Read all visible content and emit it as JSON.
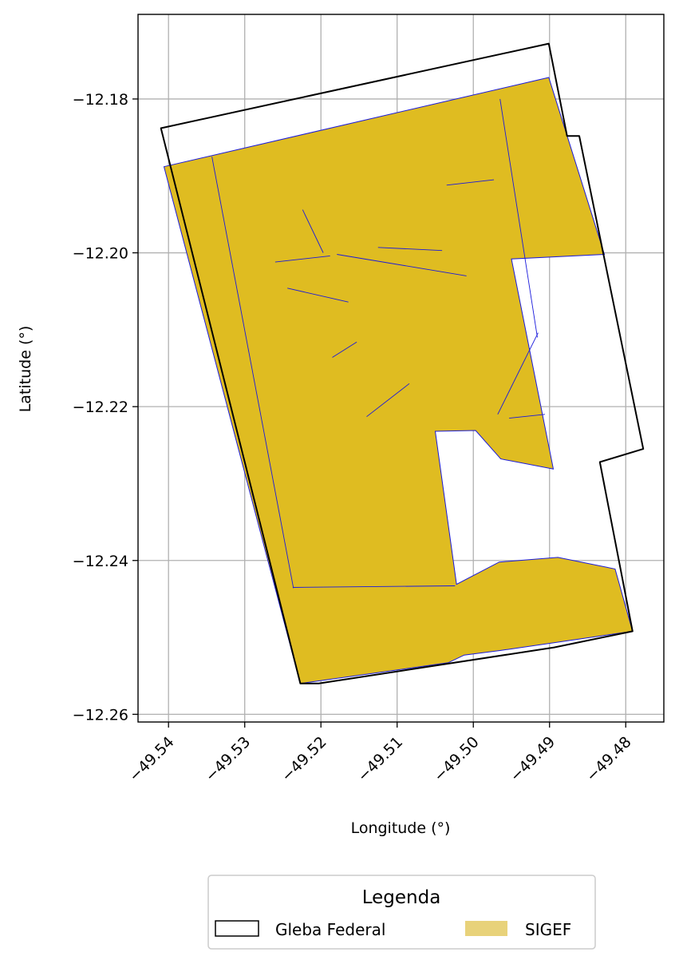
{
  "chart_data": {
    "type": "map",
    "xlabel": "Longitude (°)",
    "ylabel": "Latitude (°)",
    "xlim": [
      -49.544,
      -49.475
    ],
    "ylim": [
      -12.261,
      -12.169
    ],
    "grid": true,
    "x_ticks": [
      {
        "value": -49.54,
        "label": "−49.54"
      },
      {
        "value": -49.53,
        "label": "−49.53"
      },
      {
        "value": -49.52,
        "label": "−49.52"
      },
      {
        "value": -49.51,
        "label": "−49.51"
      },
      {
        "value": -49.5,
        "label": "−49.50"
      },
      {
        "value": -49.49,
        "label": "−49.49"
      },
      {
        "value": -49.48,
        "label": "−49.48"
      }
    ],
    "y_ticks": [
      {
        "value": -12.18,
        "label": "−12.18"
      },
      {
        "value": -12.2,
        "label": "−12.20"
      },
      {
        "value": -12.22,
        "label": "−12.22"
      },
      {
        "value": -12.24,
        "label": "−12.24"
      },
      {
        "value": -12.26,
        "label": "−12.26"
      }
    ],
    "legend": {
      "title": "Legenda",
      "placement": "bottom-center",
      "entries": [
        {
          "label": "Gleba Federal",
          "style": "outline"
        },
        {
          "label": "SIGEF",
          "style": "fill"
        }
      ]
    },
    "colors": {
      "sigef_fill": "#dfbc21",
      "sigef_legend": "#e8d27a",
      "sigef_edge": "#1a1adc",
      "gleba_edge": "#000000",
      "grid": "#b0b0b0"
    },
    "gleba_federal": [
      [
        -49.541,
        -12.1838
      ],
      [
        -49.4901,
        -12.1728
      ],
      [
        -49.4877,
        -12.1848
      ],
      [
        -49.4861,
        -12.1848
      ],
      [
        -49.4777,
        -12.2255
      ],
      [
        -49.4834,
        -12.2272
      ],
      [
        -49.4791,
        -12.2492
      ],
      [
        -49.4894,
        -12.2513
      ],
      [
        -49.5203,
        -12.256
      ],
      [
        -49.5227,
        -12.256
      ],
      [
        -49.541,
        -12.1838
      ]
    ],
    "sigef_outer": [
      [
        -49.5406,
        -12.1888
      ],
      [
        -49.4901,
        -12.1772
      ],
      [
        -49.4828,
        -12.2002
      ],
      [
        -49.495,
        -12.2008
      ],
      [
        -49.4895,
        -12.2281
      ],
      [
        -49.4964,
        -12.2268
      ],
      [
        -49.4997,
        -12.2231
      ],
      [
        -49.505,
        -12.2232
      ],
      [
        -49.5022,
        -12.2431
      ],
      [
        -49.4966,
        -12.2402
      ],
      [
        -49.4889,
        -12.2396
      ],
      [
        -49.4814,
        -12.2411
      ],
      [
        -49.4791,
        -12.2492
      ],
      [
        -49.4964,
        -12.2517
      ],
      [
        -49.5012,
        -12.2523
      ],
      [
        -49.5033,
        -12.2533
      ],
      [
        -49.5227,
        -12.256
      ],
      [
        -49.5406,
        -12.1888
      ]
    ],
    "sigef_parcel_lines": [
      [
        [
          -49.5343,
          -12.1875
        ],
        [
          -49.5236,
          -12.2436
        ]
      ],
      [
        [
          -49.5237,
          -12.2435
        ],
        [
          -49.5024,
          -12.2433
        ]
      ],
      [
        [
          -49.5179,
          -12.2002
        ],
        [
          -49.5009,
          -12.203
        ]
      ],
      [
        [
          -49.5084,
          -12.217
        ],
        [
          -49.514,
          -12.2213
        ]
      ],
      [
        [
          -49.4965,
          -12.18
        ],
        [
          -49.4916,
          -12.211
        ]
      ],
      [
        [
          -49.4968,
          -12.221
        ],
        [
          -49.4915,
          -12.2104
        ]
      ],
      [
        [
          -49.4906,
          -12.221
        ],
        [
          -49.4953,
          -12.2215
        ]
      ],
      [
        [
          -49.5185,
          -12.2136
        ],
        [
          -49.5153,
          -12.2116
        ]
      ],
      [
        [
          -49.526,
          -12.2012
        ],
        [
          -49.5188,
          -12.2004
        ]
      ],
      [
        [
          -49.5244,
          -12.2046
        ],
        [
          -49.5164,
          -12.2064
        ]
      ],
      [
        [
          -49.5224,
          -12.1944
        ],
        [
          -49.5197,
          -12.2
        ]
      ],
      [
        [
          -49.5125,
          -12.1993
        ],
        [
          -49.5041,
          -12.1997
        ]
      ],
      [
        [
          -49.5035,
          -12.1912
        ],
        [
          -49.4973,
          -12.1905
        ]
      ]
    ]
  }
}
